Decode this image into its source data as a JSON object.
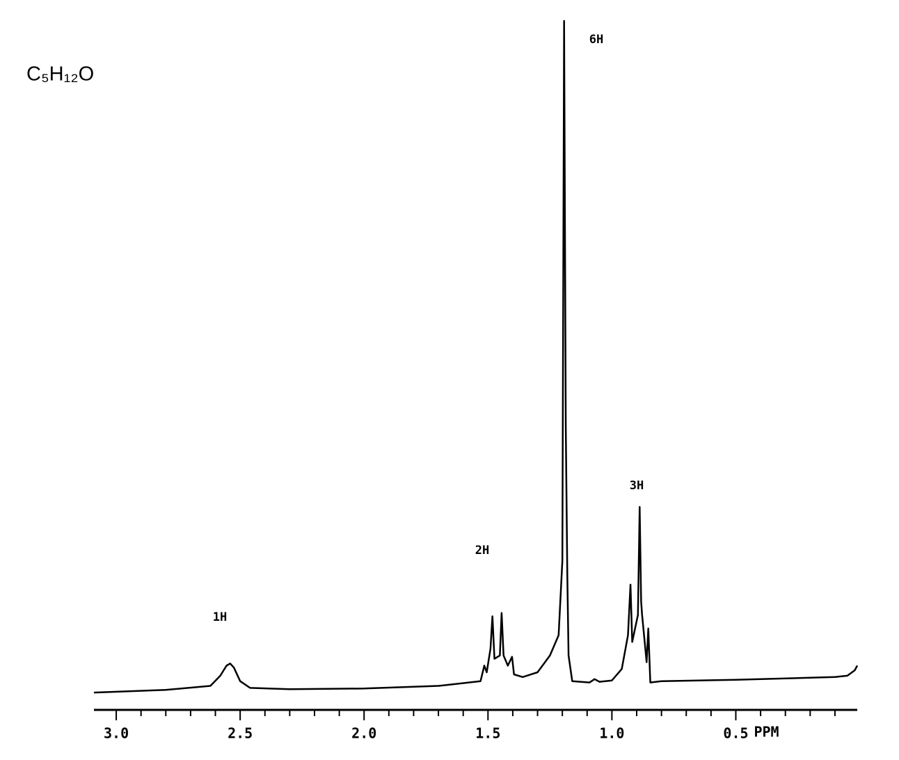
{
  "chart_data": {
    "type": "line",
    "title": "C₅H₁₂O",
    "x_label": "PPM",
    "color": "#000000",
    "reverse_x": true,
    "x": [
      3.09,
      2.8,
      2.62,
      2.58,
      2.555,
      2.54,
      2.525,
      2.5,
      2.46,
      2.3,
      2.0,
      1.7,
      1.53,
      1.515,
      1.505,
      1.49,
      1.482,
      1.474,
      1.452,
      1.445,
      1.437,
      1.42,
      1.403,
      1.395,
      1.36,
      1.3,
      1.25,
      1.215,
      1.2,
      1.193,
      1.186,
      1.18,
      1.175,
      1.16,
      1.09,
      1.07,
      1.05,
      1.0,
      0.96,
      0.935,
      0.925,
      0.918,
      0.895,
      0.888,
      0.882,
      0.878,
      0.86,
      0.853,
      0.845,
      0.8,
      0.5,
      0.1,
      0.05,
      0.02,
      0.01
    ],
    "values": [
      0.5,
      0.9,
      1.5,
      3,
      4.5,
      4.8,
      4.2,
      2.2,
      1.2,
      1.0,
      1.1,
      1.5,
      2.2,
      4.5,
      3.5,
      7,
      11.8,
      5.5,
      6,
      12.3,
      6,
      4.5,
      5.8,
      3.2,
      2.8,
      3.5,
      6,
      9,
      20,
      100,
      40,
      18,
      6,
      2.2,
      2.0,
      2.5,
      2.1,
      2.3,
      4,
      9,
      16.5,
      8,
      12,
      28,
      14,
      12,
      5,
      10,
      2,
      2.2,
      2.4,
      2.8,
      3.0,
      3.8,
      4.5
    ],
    "xlim": [
      3.09,
      0.01
    ],
    "ylim": [
      0,
      100
    ],
    "xticks": [
      {
        "value": 3,
        "label": "3.0"
      },
      2.5,
      {
        "value": 2,
        "label": "2.0"
      },
      1.5,
      {
        "value": 1,
        "label": "1.0"
      },
      0.5
    ],
    "minor_xticks": [
      2.9,
      2.8,
      2.7,
      2.6,
      2.4,
      2.3,
      2.2,
      2.1,
      1.9,
      1.8,
      1.7,
      1.6,
      1.4,
      1.3,
      1.2,
      1.1,
      0.9,
      0.8,
      0.7,
      0.6,
      0.4,
      0.3,
      0.2,
      0.1
    ],
    "annotations": [
      "1H",
      "2H",
      "6H",
      "3H"
    ],
    "grid": false
  }
}
